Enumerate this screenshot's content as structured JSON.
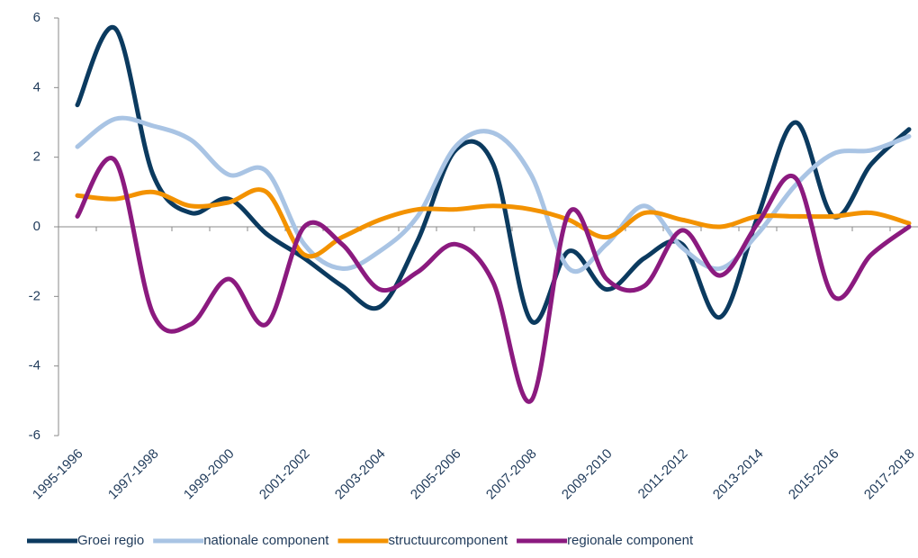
{
  "chart_data": {
    "type": "line",
    "categories": [
      "1995-1996",
      null,
      "1997-1998",
      null,
      "1999-2000",
      null,
      "2001-2002",
      null,
      "2003-2004",
      null,
      "2005-2006",
      null,
      "2007-2008",
      null,
      "2009-2010",
      null,
      "2011-2012",
      null,
      "2013-2014",
      null,
      "2015-2016",
      null,
      "2017-2018"
    ],
    "series": [
      {
        "name": "Groei regio",
        "color": "#0b3a5f",
        "values": [
          3.5,
          5.7,
          1.5,
          0.4,
          0.8,
          -0.2,
          -0.9,
          -1.7,
          -2.3,
          -0.4,
          2.2,
          1.8,
          -2.7,
          -0.7,
          -1.8,
          -0.9,
          -0.5,
          -2.6,
          0.3,
          3.0,
          0.3,
          1.8,
          2.8
        ]
      },
      {
        "name": "nationale component",
        "color": "#a9c4e4",
        "values": [
          2.3,
          3.1,
          2.9,
          2.5,
          1.5,
          1.6,
          -0.5,
          -1.2,
          -0.7,
          0.3,
          2.3,
          2.7,
          1.5,
          -1.2,
          -0.5,
          0.6,
          -0.6,
          -1.2,
          -0.2,
          1.2,
          2.1,
          2.2,
          2.6
        ]
      },
      {
        "name": "structuurcomponent",
        "color": "#f39200",
        "values": [
          0.9,
          0.8,
          1.0,
          0.6,
          0.7,
          1.0,
          -0.8,
          -0.3,
          0.2,
          0.5,
          0.5,
          0.6,
          0.5,
          0.2,
          -0.3,
          0.4,
          0.2,
          0.0,
          0.3,
          0.3,
          0.3,
          0.4,
          0.1
        ]
      },
      {
        "name": "regionale component",
        "color": "#8b1a7f",
        "values": [
          0.3,
          1.9,
          -2.5,
          -2.8,
          -1.5,
          -2.8,
          0.0,
          -0.5,
          -1.8,
          -1.3,
          -0.5,
          -1.6,
          -5.0,
          0.4,
          -1.5,
          -1.7,
          -0.1,
          -1.4,
          0.1,
          1.4,
          -2.0,
          -0.8,
          0.0
        ]
      }
    ],
    "ylim": [
      -6,
      6
    ],
    "yticks": [
      -6,
      -4,
      -2,
      0,
      2,
      4,
      6
    ],
    "legend": "bottom"
  }
}
